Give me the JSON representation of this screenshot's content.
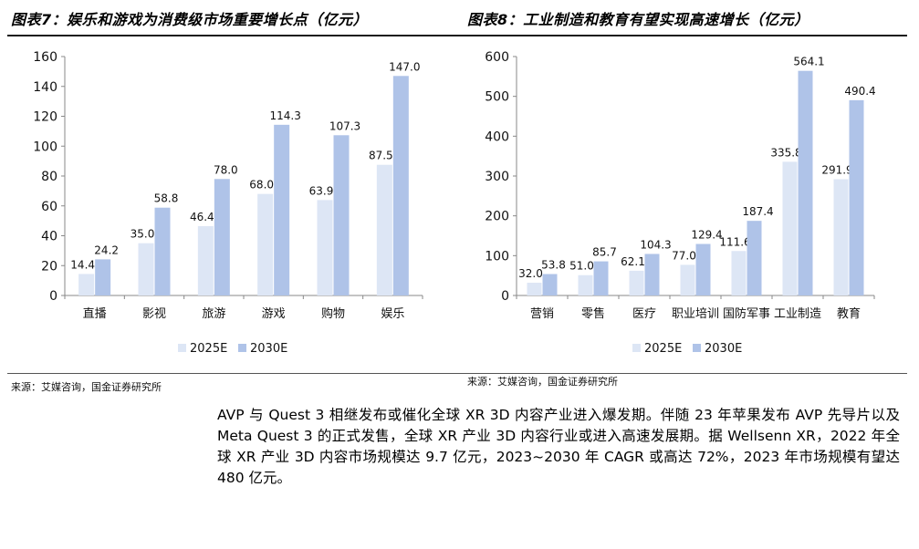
{
  "chart_data": [
    {
      "type": "bar",
      "title": "图表7：娱乐和游戏为消费级市场重要增长点（亿元）",
      "categories": [
        "直播",
        "影视",
        "旅游",
        "游戏",
        "购物",
        "娱乐"
      ],
      "series": [
        {
          "name": "2025E",
          "values": [
            14.4,
            35.0,
            46.4,
            68.0,
            63.9,
            87.5
          ]
        },
        {
          "name": "2030E",
          "values": [
            24.2,
            58.8,
            78.0,
            114.3,
            107.3,
            147.0
          ]
        }
      ],
      "ylim": [
        0,
        160
      ],
      "yticks": [
        0,
        20,
        40,
        60,
        80,
        100,
        120,
        140,
        160
      ],
      "legend": "bottom",
      "grid": false,
      "source": "来源：艾媒咨询，国金证券研究所"
    },
    {
      "type": "bar",
      "title": "图表8：工业制造和教育有望实现高速增长（亿元）",
      "categories": [
        "营销",
        "零售",
        "医疗",
        "职业培训",
        "国防军事",
        "工业制造",
        "教育"
      ],
      "series": [
        {
          "name": "2025E",
          "values": [
            32.0,
            51.0,
            62.1,
            77.0,
            111.6,
            335.8,
            291.9
          ]
        },
        {
          "name": "2030E",
          "values": [
            53.8,
            85.7,
            104.3,
            129.4,
            187.4,
            564.1,
            490.4
          ]
        }
      ],
      "ylim": [
        0,
        600
      ],
      "yticks": [
        0,
        100,
        200,
        300,
        400,
        500,
        600
      ],
      "legend": "bottom",
      "grid": false,
      "source": "来源：艾媒咨询，国金证券研究所"
    }
  ],
  "colors": {
    "series_2025E": "#dde6f5",
    "series_2030E": "#afc3e8",
    "axis": "#888888"
  },
  "body_text": "AVP 与 Quest 3 相继发布或催化全球 XR 3D 内容产业进入爆发期。伴随 23 年苹果发布 AVP 先导片以及 Meta Quest 3 的正式发售，全球 XR 产业 3D 内容行业或进入高速发展期。据 Wellsenn XR，2022 年全球 XR 产业 3D 内容市场规模达 9.7 亿元，2023~2030 年 CAGR 或高达 72%，2023 年市场规模有望达 480 亿元。"
}
